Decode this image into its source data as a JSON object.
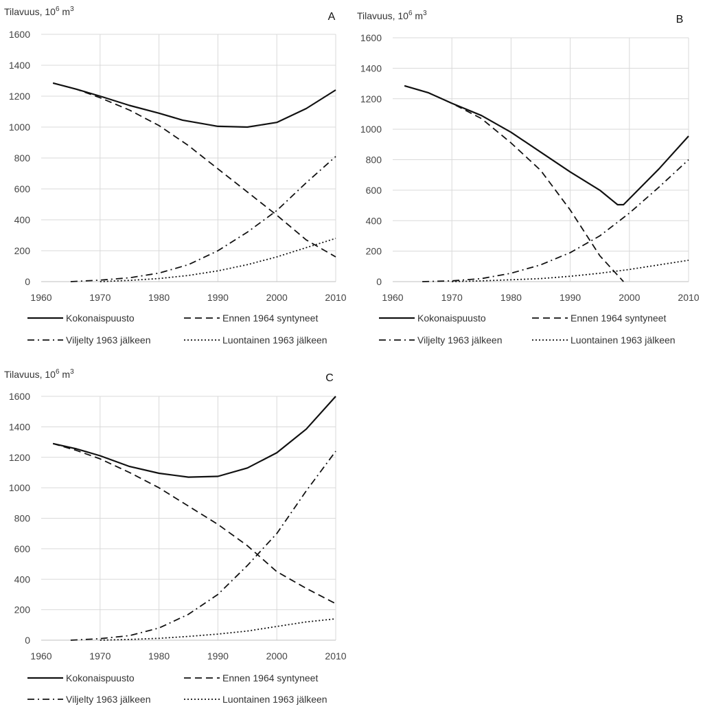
{
  "chart_data": [
    {
      "type": "line",
      "panel_label": "A",
      "ylabel": "Tilavuus, 10",
      "ylabel_sup1": "6",
      "ylabel_mid": " m",
      "ylabel_sup2": "3",
      "xlim": [
        1960,
        2010
      ],
      "ylim": [
        0,
        1600
      ],
      "xticks": [
        1960,
        1970,
        1980,
        1990,
        2000,
        2010
      ],
      "yticks": [
        0,
        200,
        400,
        600,
        800,
        1000,
        1200,
        1400,
        1600
      ],
      "grid": true,
      "legend_placement": "bottom",
      "series": [
        {
          "name": "Kokonaispuusto",
          "style": "solid",
          "x": [
            1962,
            1966,
            1970,
            1975,
            1980,
            1984,
            1990,
            1995,
            2000,
            2005,
            2010
          ],
          "y": [
            1285,
            1245,
            1200,
            1140,
            1090,
            1045,
            1005,
            1000,
            1030,
            1120,
            1240
          ]
        },
        {
          "name": "Ennen 1964 syntyneet",
          "style": "dashed",
          "x": [
            1962,
            1966,
            1970,
            1975,
            1980,
            1985,
            1990,
            1995,
            2000,
            2005,
            2010
          ],
          "y": [
            1285,
            1245,
            1190,
            1110,
            1010,
            880,
            730,
            580,
            430,
            270,
            160
          ]
        },
        {
          "name": "Viljelty 1963 jälkeen",
          "style": "dashdot",
          "x": [
            1965,
            1970,
            1975,
            1980,
            1985,
            1990,
            1995,
            2000,
            2005,
            2010
          ],
          "y": [
            0,
            10,
            25,
            55,
            110,
            200,
            320,
            460,
            640,
            810
          ]
        },
        {
          "name": "Luontainen 1963 jälkeen",
          "style": "dotted",
          "x": [
            1970,
            1975,
            1980,
            1985,
            1990,
            1995,
            2000,
            2005,
            2010
          ],
          "y": [
            0,
            8,
            20,
            40,
            70,
            110,
            160,
            220,
            280
          ]
        }
      ]
    },
    {
      "type": "line",
      "panel_label": "B",
      "ylabel": "Tilavuus, 10",
      "ylabel_sup1": "6",
      "ylabel_mid": " m",
      "ylabel_sup2": "3",
      "xlim": [
        1960,
        2010
      ],
      "ylim": [
        0,
        1600
      ],
      "xticks": [
        1960,
        1970,
        1980,
        1990,
        2000,
        2010
      ],
      "yticks": [
        0,
        200,
        400,
        600,
        800,
        1000,
        1200,
        1400,
        1600
      ],
      "grid": true,
      "legend_placement": "bottom",
      "series": [
        {
          "name": "Kokonaispuusto",
          "style": "solid",
          "x": [
            1962,
            1966,
            1970,
            1975,
            1980,
            1985,
            1990,
            1995,
            1998,
            1999,
            2005,
            2010
          ],
          "y": [
            1285,
            1240,
            1170,
            1090,
            980,
            850,
            720,
            600,
            505,
            505,
            740,
            955
          ]
        },
        {
          "name": "Ennen 1964 syntyneet",
          "style": "dashed",
          "x": [
            1962,
            1966,
            1970,
            1975,
            1980,
            1985,
            1990,
            1995,
            1999
          ],
          "y": [
            1285,
            1240,
            1170,
            1070,
            910,
            730,
            470,
            170,
            0
          ]
        },
        {
          "name": "Viljelty 1963 jälkeen",
          "style": "dashdot",
          "x": [
            1965,
            1970,
            1975,
            1980,
            1985,
            1990,
            1995,
            2000,
            2005,
            2010
          ],
          "y": [
            0,
            5,
            20,
            55,
            110,
            190,
            300,
            450,
            620,
            800
          ]
        },
        {
          "name": "Luontainen 1963 jälkeen",
          "style": "dotted",
          "x": [
            1970,
            1975,
            1980,
            1985,
            1990,
            1995,
            2000,
            2005,
            2010
          ],
          "y": [
            0,
            5,
            12,
            20,
            35,
            55,
            80,
            110,
            140
          ]
        }
      ]
    },
    {
      "type": "line",
      "panel_label": "C",
      "ylabel": "Tilavuus, 10",
      "ylabel_sup1": "6",
      "ylabel_mid": " m",
      "ylabel_sup2": "3",
      "xlim": [
        1960,
        2010
      ],
      "ylim": [
        0,
        1600
      ],
      "xticks": [
        1960,
        1970,
        1980,
        1990,
        2000,
        2010
      ],
      "yticks": [
        0,
        200,
        400,
        600,
        800,
        1000,
        1200,
        1400,
        1600
      ],
      "grid": true,
      "legend_placement": "bottom",
      "series": [
        {
          "name": "Kokonaispuusto",
          "style": "solid",
          "x": [
            1962,
            1966,
            1970,
            1975,
            1980,
            1985,
            1990,
            1995,
            2000,
            2005,
            2010
          ],
          "y": [
            1290,
            1255,
            1210,
            1140,
            1095,
            1070,
            1075,
            1130,
            1230,
            1385,
            1600
          ]
        },
        {
          "name": "Ennen 1964 syntyneet",
          "style": "dashed",
          "x": [
            1962,
            1966,
            1970,
            1975,
            1980,
            1985,
            1990,
            1995,
            2000,
            2005,
            2010
          ],
          "y": [
            1290,
            1245,
            1190,
            1100,
            1000,
            880,
            760,
            620,
            450,
            340,
            240
          ]
        },
        {
          "name": "Viljelty 1963 jälkeen",
          "style": "dashdot",
          "x": [
            1965,
            1970,
            1975,
            1980,
            1985,
            1990,
            1995,
            2000,
            2005,
            2010
          ],
          "y": [
            0,
            10,
            30,
            80,
            170,
            300,
            490,
            700,
            980,
            1240
          ]
        },
        {
          "name": "Luontainen 1963 jälkeen",
          "style": "dotted",
          "x": [
            1970,
            1975,
            1980,
            1985,
            1990,
            1995,
            2000,
            2005,
            2010
          ],
          "y": [
            0,
            5,
            12,
            25,
            40,
            60,
            90,
            120,
            140
          ]
        }
      ]
    }
  ]
}
